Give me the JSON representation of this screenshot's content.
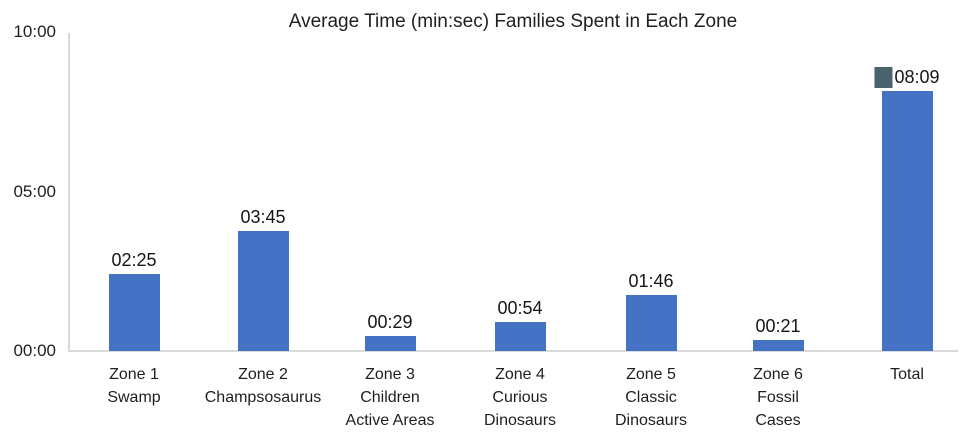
{
  "colors": {
    "bar": "#4472C4",
    "axis": "#D9D9D9",
    "text": "#1F1F1F",
    "marker": "#4A646E",
    "background": "#FFFFFF"
  },
  "chart_data": {
    "type": "bar",
    "title": "Average Time (min:sec) Families Spent in Each Zone",
    "categories": [
      "Zone 1 Swamp",
      "Zone 2 Champsosaurus",
      "Zone 3 Children Active Areas",
      "Zone 4 Curious Dinosaurs",
      "Zone 5 Classic Dinosaurs",
      "Zone 6 Fossil Cases",
      "Total"
    ],
    "category_label_lines": [
      [
        "Zone 1",
        "Swamp"
      ],
      [
        "Zone 2",
        "Champsosaurus"
      ],
      [
        "Zone 3",
        "Children",
        "Active Areas"
      ],
      [
        "Zone 4",
        "Curious",
        "Dinosaurs"
      ],
      [
        "Zone 5",
        "Classic",
        "Dinosaurs"
      ],
      [
        "Zone 6",
        "Fossil",
        "Cases"
      ],
      [
        "Total"
      ]
    ],
    "values_minsec": [
      "02:25",
      "03:45",
      "00:29",
      "00:54",
      "01:46",
      "00:21",
      "08:09"
    ],
    "values_seconds": [
      145,
      225,
      29,
      54,
      106,
      21,
      489
    ],
    "xlabel": "",
    "ylabel": "",
    "y_axis": {
      "min_seconds": 0,
      "max_seconds": 600,
      "ticks": [
        {
          "label": "00:00",
          "seconds": 0
        },
        {
          "label": "05:00",
          "seconds": 300
        },
        {
          "label": "10:00",
          "seconds": 600
        }
      ]
    },
    "grid": false,
    "legend": "none",
    "bar_color": "#4472C4",
    "annotation_marker": {
      "category": "Total",
      "color": "#4A646E",
      "shape": "square",
      "position": "left-of-value-label"
    }
  }
}
